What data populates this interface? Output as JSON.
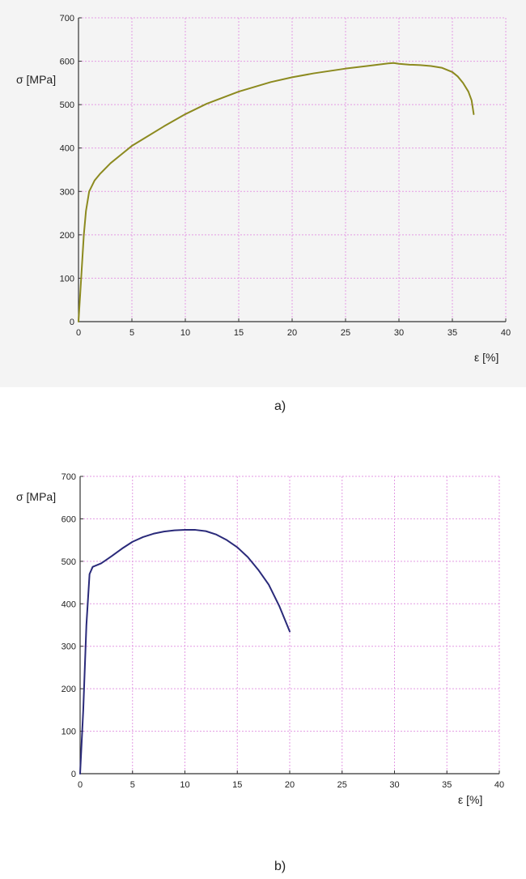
{
  "colors": {
    "grid": "#e39ae3",
    "axis": "#333333",
    "panel_background": "#f4f4f4"
  },
  "chart_data": [
    {
      "type": "line",
      "caption": "a)",
      "xlabel": "ε [%]",
      "ylabel": "σ  [MPa]",
      "xlim": [
        0,
        40
      ],
      "ylim": [
        0,
        700
      ],
      "xticks": [
        0,
        5,
        10,
        15,
        20,
        25,
        30,
        35,
        40
      ],
      "yticks": [
        0,
        100,
        200,
        300,
        400,
        500,
        600,
        700
      ],
      "grid": true,
      "series": [
        {
          "color": "#8c8a1f",
          "x": [
            0,
            0.3,
            0.5,
            0.7,
            1.0,
            1.5,
            2.0,
            3.0,
            4.0,
            5.0,
            6.0,
            8.0,
            10.0,
            12.0,
            15.0,
            18.0,
            20.0,
            22.0,
            25.0,
            27.0,
            29.0,
            29.5,
            30.0,
            31.0,
            32.0,
            33.0,
            34.0,
            35.0,
            35.5,
            36.0,
            36.5,
            36.8,
            37.0
          ],
          "y": [
            0,
            120,
            200,
            255,
            300,
            325,
            340,
            365,
            385,
            405,
            420,
            450,
            478,
            502,
            530,
            552,
            563,
            572,
            583,
            589,
            595,
            596,
            594,
            592,
            591,
            589,
            585,
            575,
            565,
            550,
            530,
            510,
            478
          ]
        }
      ]
    },
    {
      "type": "line",
      "caption": "b)",
      "xlabel": "ε [%]",
      "ylabel": "σ  [MPa]",
      "xlim": [
        0,
        40
      ],
      "ylim": [
        0,
        700
      ],
      "xticks": [
        0,
        5,
        10,
        15,
        20,
        25,
        30,
        35,
        40
      ],
      "yticks": [
        0,
        100,
        200,
        300,
        400,
        500,
        600,
        700
      ],
      "grid": true,
      "series": [
        {
          "color": "#2a2a7a",
          "x": [
            0,
            0.3,
            0.6,
            0.9,
            1.2,
            2.0,
            3.0,
            4.0,
            5.0,
            6.0,
            7.0,
            8.0,
            9.0,
            10.0,
            11.0,
            12.0,
            13.0,
            14.0,
            15.0,
            16.0,
            17.0,
            18.0,
            19.0,
            20.0
          ],
          "y": [
            0,
            150,
            350,
            470,
            487,
            495,
            512,
            530,
            546,
            557,
            565,
            570,
            573,
            574,
            574,
            571,
            563,
            550,
            533,
            510,
            480,
            445,
            395,
            335
          ]
        }
      ]
    }
  ]
}
